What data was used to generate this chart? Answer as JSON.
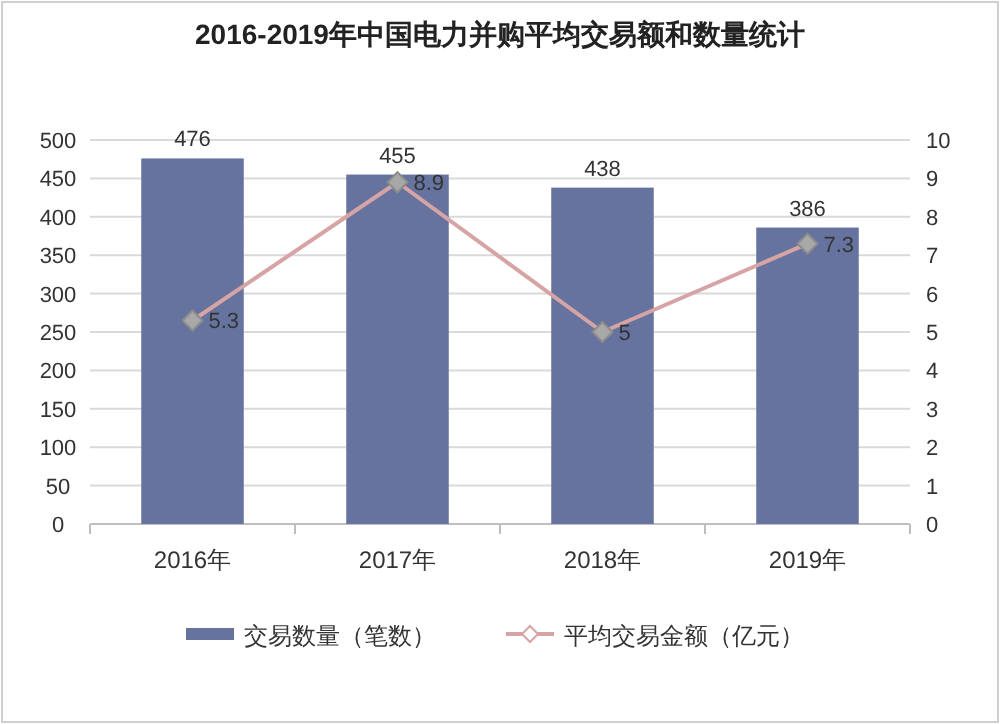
{
  "chart_data": {
    "type": "bar",
    "title": "2016-2019年中国电力并购平均交易额和数量统计",
    "categories": [
      "2016年",
      "2017年",
      "2018年",
      "2019年"
    ],
    "series": [
      {
        "name": "交易数量（笔数）",
        "color": "#65739e",
        "values": [
          476,
          455,
          438,
          386
        ]
      },
      {
        "name": "平均交易金额（亿元）",
        "type": "line",
        "axis": "y2",
        "color": "#d6a4a4",
        "values": [
          5.3,
          8.9,
          5,
          7.3
        ]
      }
    ],
    "ylim": [
      0,
      500
    ],
    "yticks": [
      0,
      50,
      100,
      150,
      200,
      250,
      300,
      350,
      400,
      450,
      500
    ],
    "y2lim": [
      0,
      10
    ],
    "y2ticks": [
      0,
      1,
      2,
      3,
      4,
      5,
      6,
      7,
      8,
      9,
      10
    ],
    "data_labels": true,
    "grid": "y",
    "legend": "bottom",
    "marker": "diamond"
  }
}
